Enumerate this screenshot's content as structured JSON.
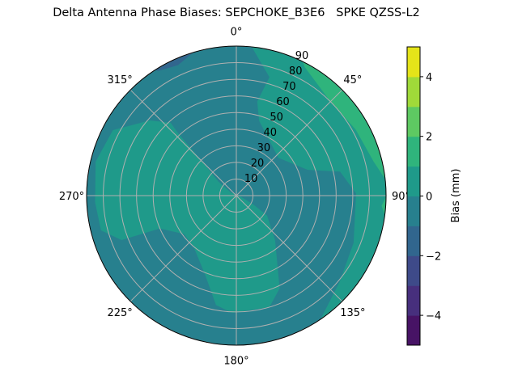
{
  "chart_data": {
    "type": "polar-contour",
    "title": "Delta Antenna Phase Biases: SEPCHOKE_B3E6   SPKE QZSS-L2",
    "theta_direction": "clockwise",
    "theta_zero": "north",
    "theta_ticks": [
      0,
      45,
      90,
      135,
      180,
      225,
      270,
      315
    ],
    "theta_tick_labels": [
      "0°",
      "45°",
      "90°",
      "135°",
      "180°",
      "225°",
      "270°",
      "315°"
    ],
    "r_range": [
      0,
      90
    ],
    "r_ticks": [
      10,
      20,
      30,
      40,
      50,
      60,
      70,
      80,
      90
    ],
    "r_tick_labels": [
      "10",
      "20",
      "30",
      "40",
      "50",
      "60",
      "70",
      "80",
      "90"
    ],
    "grid": true,
    "levels": [
      -5,
      -4,
      -3,
      -2,
      -1,
      0,
      1,
      2,
      3,
      4,
      5
    ],
    "level_colors": [
      "#471365",
      "#472f7d",
      "#3e4a89",
      "#31668e",
      "#27808e",
      "#1f9a8a",
      "#2fb47c",
      "#5ec962",
      "#a0da39",
      "#e5e419"
    ],
    "background_level_bin": [
      -1,
      0
    ],
    "regions": [
      {
        "bin": [
          0,
          1
        ],
        "points": [
          [
            283.6,
            87
          ],
          [
            298,
            84
          ],
          [
            311,
            69
          ],
          [
            318,
            59
          ],
          [
            317,
            51
          ],
          [
            315,
            29
          ],
          [
            308,
            13.5
          ],
          [
            300,
            4
          ],
          [
            101,
            2.5
          ],
          [
            117.6,
            11.5
          ],
          [
            123,
            22
          ],
          [
            139,
            35.5
          ],
          [
            155,
            61.6
          ],
          [
            163.5,
            70
          ],
          [
            182,
            70.6
          ],
          [
            190.5,
            67
          ],
          [
            201.7,
            51
          ],
          [
            218.7,
            40.5
          ],
          [
            233.6,
            39
          ],
          [
            246.7,
            50
          ],
          [
            248.8,
            74
          ],
          [
            255.6,
            84
          ],
          [
            267.4,
            85
          ]
        ]
      },
      {
        "bin": [
          0,
          1
        ],
        "rim": [
          5,
          148
        ],
        "points": [
          [
            130,
            81
          ],
          [
            112,
            76
          ],
          [
            97,
            72
          ],
          [
            89,
            72
          ],
          [
            77,
            64
          ],
          [
            70,
            45.5
          ],
          [
            48,
            34
          ],
          [
            17,
            47
          ],
          [
            12.5,
            58
          ],
          [
            15.6,
            74
          ]
        ]
      },
      {
        "bin": [
          1,
          2
        ],
        "rim": [
          25,
          86
        ],
        "points": [
          [
            76,
            85
          ],
          [
            61,
            82
          ],
          [
            45,
            80
          ],
          [
            28,
            87.6
          ]
        ]
      },
      {
        "bin": [
          1,
          2
        ],
        "rim": [
          88,
          100
        ],
        "points": [
          [
            94,
            87.5
          ]
        ]
      },
      {
        "bin": [
          -2,
          -1
        ],
        "rim": [
          326,
          346
        ],
        "points": [
          [
            336,
            86
          ],
          [
            328,
            88.5
          ]
        ]
      }
    ],
    "colorbar": {
      "label": "Bias (mm)",
      "range": [
        -5,
        5
      ],
      "ticks": [
        -4,
        -2,
        0,
        2,
        4
      ],
      "tick_labels": [
        "−4",
        "−2",
        "0",
        "2",
        "4"
      ]
    }
  }
}
